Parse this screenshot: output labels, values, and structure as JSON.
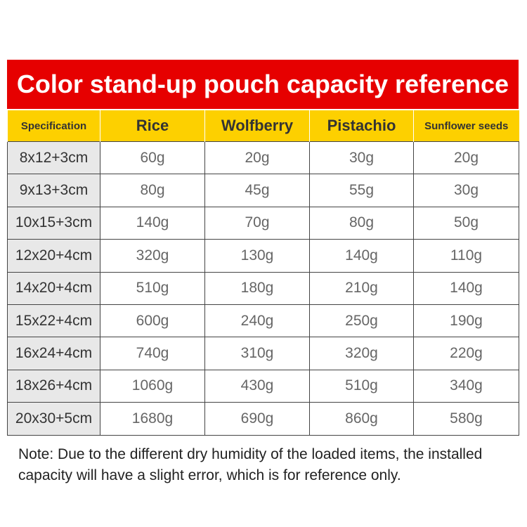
{
  "title": "Color stand-up pouch capacity reference",
  "headers": [
    "Specification",
    "Rice",
    "Wolfberry",
    "Pistachio",
    "Sunflower seeds"
  ],
  "rows": [
    [
      "8x12+3cm",
      "60g",
      "20g",
      "30g",
      "20g"
    ],
    [
      "9x13+3cm",
      "80g",
      "45g",
      "55g",
      "30g"
    ],
    [
      "10x15+3cm",
      "140g",
      "70g",
      "80g",
      "50g"
    ],
    [
      "12x20+4cm",
      "320g",
      "130g",
      "140g",
      "110g"
    ],
    [
      "14x20+4cm",
      "510g",
      "180g",
      "210g",
      "140g"
    ],
    [
      "15x22+4cm",
      "600g",
      "240g",
      "250g",
      "190g"
    ],
    [
      "16x24+4cm",
      "740g",
      "310g",
      "320g",
      "220g"
    ],
    [
      "18x26+4cm",
      "1060g",
      "430g",
      "510g",
      "340g"
    ],
    [
      "20x30+5cm",
      "1680g",
      "690g",
      "860g",
      "580g"
    ]
  ],
  "note": "Note: Due to the different dry humidity of the loaded items, the installed capacity will have a slight error, which is for reference only.",
  "colors": {
    "title_bg": "#e60000",
    "header_bg": "#fdd000",
    "spec_bg": "#e8e8e8"
  }
}
